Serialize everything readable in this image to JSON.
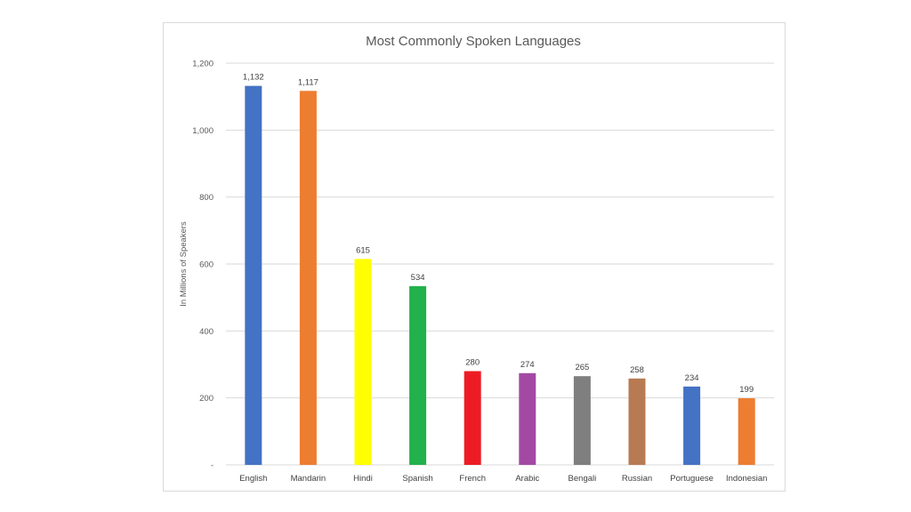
{
  "chart_data": {
    "type": "bar",
    "title": "Most Commonly Spoken Languages",
    "ylabel": "In Millions of Speakers",
    "xlabel": "",
    "ylim": [
      0,
      1200
    ],
    "yticks": [
      0,
      200,
      400,
      600,
      800,
      1000,
      1200
    ],
    "ytick_labels": [
      "-",
      "200",
      "400",
      "600",
      "800",
      "1,000",
      "1,200"
    ],
    "categories": [
      "English",
      "Mandarin",
      "Hindi",
      "Spanish",
      "French",
      "Arabic",
      "Bengali",
      "Russian",
      "Portuguese",
      "Indonesian"
    ],
    "values": [
      1132,
      1117,
      615,
      534,
      280,
      274,
      265,
      258,
      234,
      199
    ],
    "value_labels": [
      "1,132",
      "1,117",
      "615",
      "534",
      "280",
      "274",
      "265",
      "258",
      "234",
      "199"
    ],
    "colors": [
      "#4472c4",
      "#ed7d31",
      "#ffff00",
      "#22b14c",
      "#ed1c24",
      "#a349a4",
      "#7f7f7f",
      "#b87a52",
      "#4472c4",
      "#ed7d31"
    ],
    "grid": true,
    "legend": "none"
  }
}
